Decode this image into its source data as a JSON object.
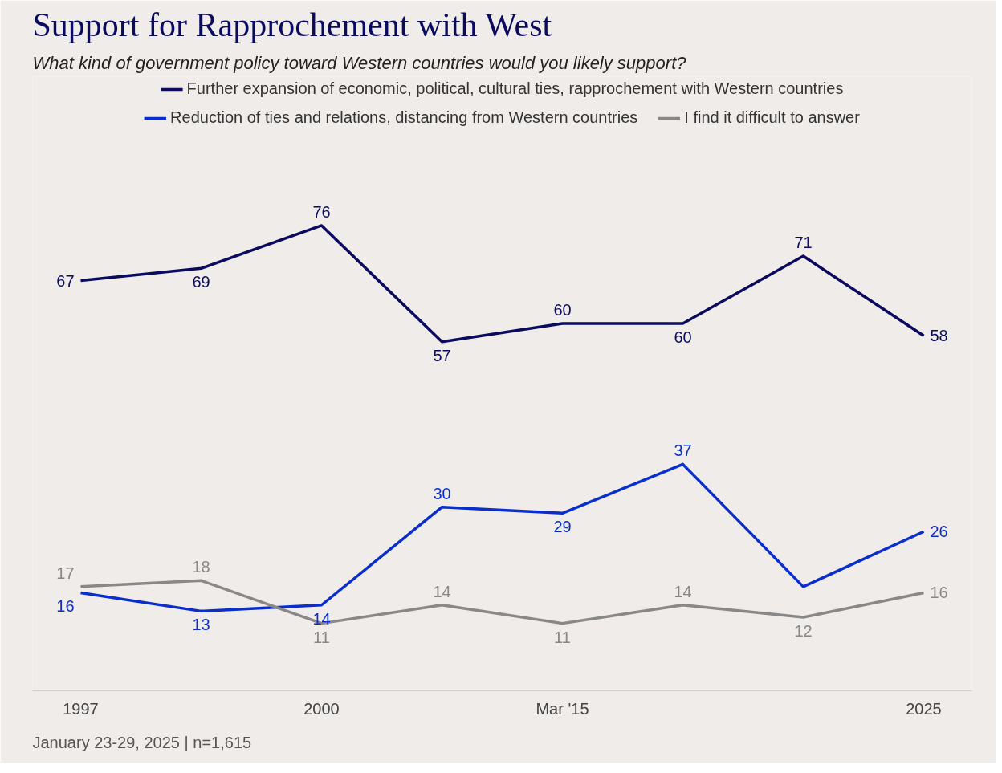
{
  "chart_data": {
    "type": "line",
    "title": "Support for Rapprochement with West",
    "subtitle": "What kind of government policy toward Western countries would you likely support?",
    "categories": [
      "1997",
      null,
      "2000",
      null,
      "Mar '15",
      null,
      null,
      "2025"
    ],
    "series": [
      {
        "name": "Further expansion of economic, political, cultural ties, rapprochement with Western countries",
        "color": "#0a0a5e",
        "values": [
          67,
          69,
          76,
          57,
          60,
          60,
          71,
          58
        ],
        "value_labels": [
          "67",
          "69",
          "76",
          "57",
          "60",
          "60",
          "71",
          "58"
        ]
      },
      {
        "name": "Reduction of ties and relations, distancing from Western countries",
        "color": "#0a2ecc",
        "values": [
          16,
          13,
          14,
          30,
          29,
          37,
          17,
          26
        ],
        "value_labels": [
          "16",
          "13",
          "14",
          "30",
          "29",
          "37",
          null,
          "26"
        ]
      },
      {
        "name": "I find it difficult to answer",
        "color": "#888888",
        "values": [
          17,
          18,
          11,
          14,
          11,
          14,
          12,
          16
        ],
        "value_labels": [
          "17",
          "18",
          "11",
          "14",
          "11",
          "14",
          "12",
          "16"
        ]
      }
    ],
    "legend": "top",
    "grid": false,
    "marker": "none",
    "line_style": "solid",
    "annotations": [
      "January 23-29, 2025 | n=1,615"
    ]
  }
}
